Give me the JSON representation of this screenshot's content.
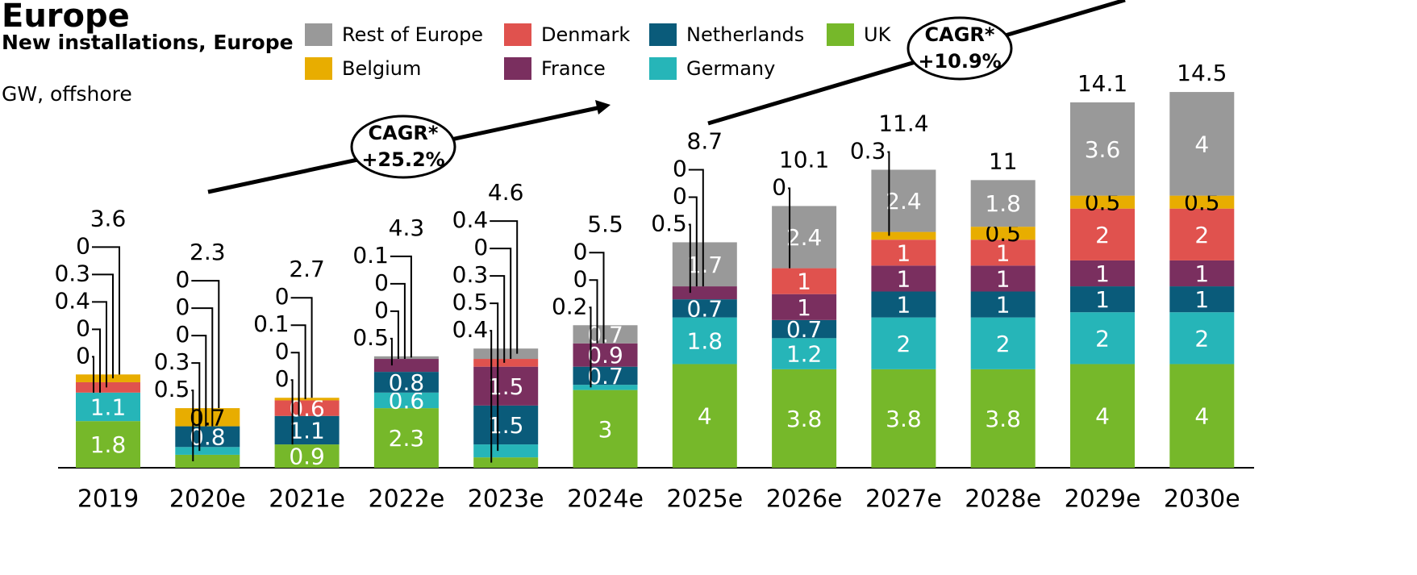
{
  "chart_data": {
    "type": "stacked_bar",
    "title": "Europe",
    "subtitle": "New installations, Europe",
    "unit": "GW, offshore",
    "categories": [
      "2019",
      "2020e",
      "2021e",
      "2022e",
      "2023e",
      "2024e",
      "2025e",
      "2026e",
      "2027e",
      "2028e",
      "2029e",
      "2030e"
    ],
    "series": [
      {
        "name": "UK",
        "color": "#76b82a",
        "values": [
          1.8,
          0.5,
          0.9,
          2.3,
          0.4,
          3.0,
          4.0,
          3.8,
          3.8,
          3.8,
          4.0,
          4.0
        ]
      },
      {
        "name": "Germany",
        "color": "#26b5b8",
        "values": [
          1.1,
          0.3,
          0.0,
          0.6,
          0.5,
          0.2,
          1.8,
          1.2,
          2.0,
          2.0,
          2.0,
          2.0
        ]
      },
      {
        "name": "Netherlands",
        "color": "#0a5b7a",
        "values": [
          0.0,
          0.8,
          1.1,
          0.8,
          1.5,
          0.7,
          0.7,
          0.7,
          1.0,
          1.0,
          1.0,
          1.0
        ]
      },
      {
        "name": "France",
        "color": "#7a2f5f",
        "values": [
          0.0,
          0.0,
          0.0,
          0.5,
          1.5,
          0.9,
          0.5,
          1.0,
          1.0,
          1.0,
          1.0,
          1.0
        ]
      },
      {
        "name": "Denmark",
        "color": "#e0524e",
        "values": [
          0.4,
          0.0,
          0.6,
          0.0,
          0.3,
          0.0,
          0.0,
          1.0,
          1.0,
          1.0,
          2.0,
          2.0
        ]
      },
      {
        "name": "Belgium",
        "color": "#e8ad00",
        "values": [
          0.3,
          0.7,
          0.1,
          0.0,
          0.0,
          0.0,
          0.0,
          0.0,
          0.3,
          0.5,
          0.5,
          0.5
        ]
      },
      {
        "name": "Rest of Europe",
        "color": "#999999",
        "values": [
          0.0,
          0.0,
          0.0,
          0.1,
          0.4,
          0.7,
          1.7,
          2.4,
          2.4,
          1.8,
          3.6,
          4.0
        ]
      }
    ],
    "totals": [
      3.6,
      2.3,
      2.7,
      4.3,
      4.6,
      5.5,
      8.7,
      10.1,
      11.4,
      11.0,
      14.1,
      14.5
    ],
    "ylim": [
      0,
      15
    ],
    "annotations": [
      {
        "label": "CAGR*",
        "text": "+25.2%"
      },
      {
        "label": "CAGR*",
        "text": "+10.9%"
      }
    ]
  }
}
